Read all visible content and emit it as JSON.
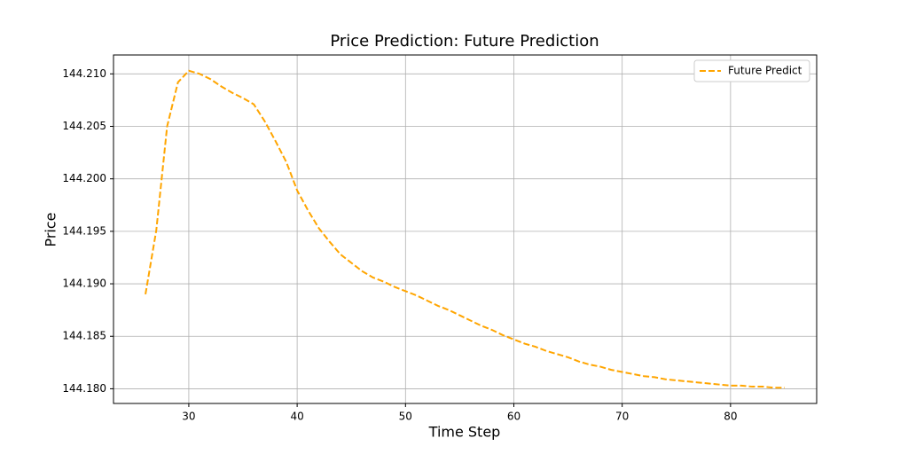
{
  "chart_data": {
    "type": "line",
    "title": "Price Prediction: Future Prediction",
    "xlabel": "Time Step",
    "ylabel": "Price",
    "x": [
      26,
      27,
      28,
      29,
      30,
      31,
      32,
      33,
      34,
      35,
      36,
      37,
      38,
      39,
      40,
      41,
      42,
      43,
      44,
      45,
      46,
      47,
      48,
      49,
      50,
      51,
      52,
      53,
      54,
      55,
      56,
      57,
      58,
      59,
      60,
      61,
      62,
      63,
      64,
      65,
      66,
      67,
      68,
      69,
      70,
      71,
      72,
      73,
      74,
      75,
      76,
      77,
      78,
      79,
      80,
      81,
      82,
      83,
      84,
      85
    ],
    "series": [
      {
        "name": "Future Predict",
        "color": "#ffa500",
        "dashed": true,
        "values": [
          144.189,
          144.1951,
          144.205,
          144.2092,
          144.2103,
          144.21,
          144.2095,
          144.2088,
          144.2082,
          144.2077,
          144.2071,
          144.2055,
          144.2036,
          144.2016,
          144.1989,
          144.197,
          144.1953,
          144.194,
          144.1928,
          144.192,
          144.1912,
          144.1906,
          144.1902,
          144.1897,
          144.1893,
          144.1889,
          144.1884,
          144.1879,
          144.1875,
          144.187,
          144.1865,
          144.186,
          144.1856,
          144.1851,
          144.1847,
          144.1843,
          144.184,
          144.1836,
          144.1833,
          144.183,
          144.1826,
          144.1823,
          144.1821,
          144.1818,
          144.1816,
          144.1814,
          144.1812,
          144.1811,
          144.1809,
          144.1808,
          144.1807,
          144.1806,
          144.1805,
          144.1804,
          144.1803,
          144.1803,
          144.1802,
          144.1802,
          144.1801,
          144.1801
        ]
      }
    ],
    "xlim": [
      23.05,
      87.95
    ],
    "ylim": [
      144.1786,
      144.2118
    ],
    "xticks": [
      30,
      40,
      50,
      60,
      70,
      80
    ],
    "yticks": [
      {
        "value": 144.18,
        "label": "144.180"
      },
      {
        "value": 144.185,
        "label": "144.185"
      },
      {
        "value": 144.19,
        "label": "144.190"
      },
      {
        "value": 144.195,
        "label": "144.195"
      },
      {
        "value": 144.2,
        "label": "144.200"
      },
      {
        "value": 144.205,
        "label": "144.205"
      },
      {
        "value": 144.21,
        "label": "144.210"
      }
    ],
    "grid": true,
    "legend": "upper right"
  }
}
